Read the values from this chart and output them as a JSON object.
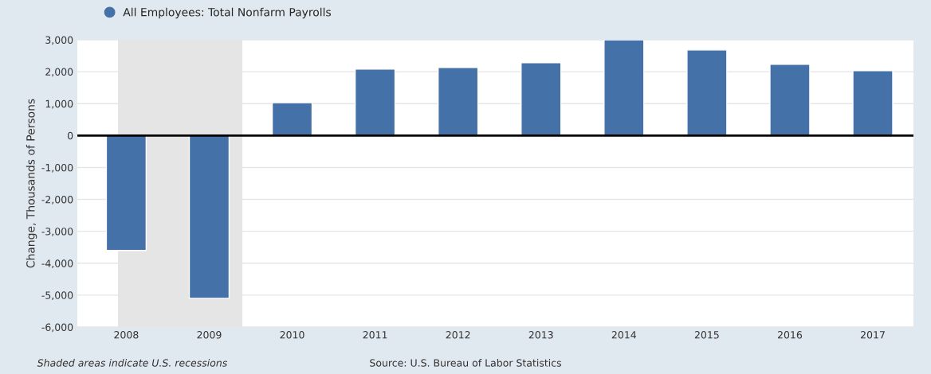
{
  "chart_data": {
    "type": "bar",
    "ylabel": "Change, Thousands of Persons",
    "x": [
      2008,
      2009,
      2010,
      2011,
      2012,
      2013,
      2014,
      2015,
      2016,
      2017
    ],
    "series": [
      {
        "name": "All Employees: Total Nonfarm Payrolls",
        "color": "#4472a8",
        "values": [
          -3600,
          -5100,
          1030,
          2080,
          2130,
          2280,
          3000,
          2680,
          2230,
          2030
        ]
      }
    ],
    "xlim": [
      2007.41,
      2017.49
    ],
    "xticks": [
      2008,
      2009,
      2010,
      2011,
      2012,
      2013,
      2014,
      2015,
      2016,
      2017
    ],
    "ylim": [
      -6000,
      3000
    ],
    "yticks": [
      {
        "value": -6000,
        "label": "-6,000"
      },
      {
        "value": -5000,
        "label": "-5,000"
      },
      {
        "value": -4000,
        "label": "-4,000"
      },
      {
        "value": -3000,
        "label": "-3,000"
      },
      {
        "value": -2000,
        "label": "-2,000"
      },
      {
        "value": -1000,
        "label": "-1,000"
      },
      0,
      {
        "value": 1000,
        "label": "1,000"
      },
      {
        "value": 2000,
        "label": "2,000"
      },
      {
        "value": 3000,
        "label": "3,000"
      }
    ],
    "bands": [
      {
        "axis": "x",
        "from": 2007.9,
        "to": 2009.4,
        "color": "#e5e5e5"
      }
    ],
    "ref_lines": [
      {
        "axis": "y",
        "value": 0,
        "color": "#000000"
      }
    ],
    "grid": "y",
    "legend": "top left",
    "marker": "circle",
    "annotations": [
      "Shaded areas indicate U.S. recessions",
      "Source: U.S. Bureau of Labor Statistics"
    ]
  }
}
